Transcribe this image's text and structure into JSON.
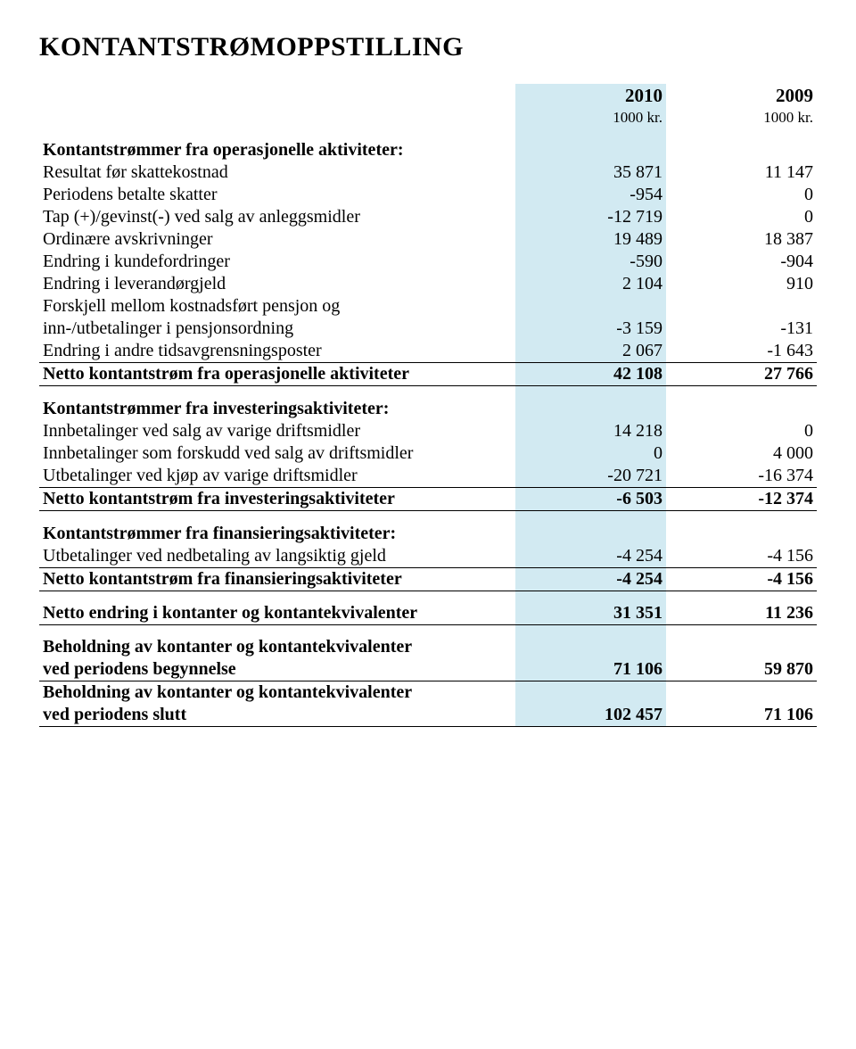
{
  "title": "KONTANTSTRØMOPPSTILLING",
  "colors": {
    "highlight": "#d2eaf2",
    "rule": "#000000"
  },
  "header": {
    "years": [
      "2010",
      "2009"
    ],
    "units": [
      "1000 kr.",
      "1000 kr."
    ]
  },
  "sections": {
    "ops": {
      "heading": "Kontantstrømmer fra operasjonelle aktiviteter:",
      "rows": [
        {
          "label": "Resultat før skattekostnad",
          "v1": "35 871",
          "v2": "11 147"
        },
        {
          "label": "Periodens betalte skatter",
          "v1": "-954",
          "v2": "0"
        },
        {
          "label": "Tap (+)/gevinst(-) ved salg av anleggsmidler",
          "v1": "-12 719",
          "v2": "0"
        },
        {
          "label": "Ordinære avskrivninger",
          "v1": "19 489",
          "v2": "18 387"
        },
        {
          "label": "Endring i kundefordringer",
          "v1": "-590",
          "v2": "-904"
        },
        {
          "label": "Endring i leverandørgjeld",
          "v1": "2 104",
          "v2": "910"
        },
        {
          "label": "Forskjell mellom kostnadsført pensjon og",
          "v1": "",
          "v2": ""
        },
        {
          "label": "inn-/utbetalinger i pensjonsordning",
          "v1": "-3 159",
          "v2": "-131"
        },
        {
          "label": "Endring i andre tidsavgrensningsposter",
          "v1": "2 067",
          "v2": "-1 643"
        }
      ],
      "total": {
        "label": "Netto kontantstrøm fra operasjonelle aktiviteter",
        "v1": "42 108",
        "v2": "27 766"
      }
    },
    "inv": {
      "heading": "Kontantstrømmer fra investeringsaktiviteter:",
      "rows": [
        {
          "label": "Innbetalinger ved salg av varige driftsmidler",
          "v1": "14 218",
          "v2": "0"
        },
        {
          "label": "Innbetalinger som forskudd ved salg av driftsmidler",
          "v1": "0",
          "v2": "4 000"
        },
        {
          "label": "Utbetalinger ved kjøp av varige driftsmidler",
          "v1": "-20 721",
          "v2": "-16 374"
        }
      ],
      "total": {
        "label": "Netto kontantstrøm fra investeringsaktiviteter",
        "v1": "-6 503",
        "v2": "-12 374"
      }
    },
    "fin": {
      "heading": "Kontantstrømmer fra finansieringsaktiviteter:",
      "rows": [
        {
          "label": "Utbetalinger ved nedbetaling av langsiktig gjeld",
          "v1": "-4 254",
          "v2": "-4 156"
        }
      ],
      "total": {
        "label": "Netto kontantstrøm fra finansieringsaktiviteter",
        "v1": "-4 254",
        "v2": "-4 156"
      }
    },
    "netchange": {
      "label": "Netto endring i kontanter og kontantekvivalenter",
      "v1": "31 351",
      "v2": "11 236"
    },
    "opening": {
      "line1": "Beholdning av kontanter og kontantekvivalenter",
      "line2": "ved periodens begynnelse",
      "v1": "71 106",
      "v2": "59 870"
    },
    "closing": {
      "line1": "Beholdning av kontanter og kontantekvivalenter",
      "line2": "ved periodens slutt",
      "v1": "102 457",
      "v2": "71 106"
    }
  }
}
